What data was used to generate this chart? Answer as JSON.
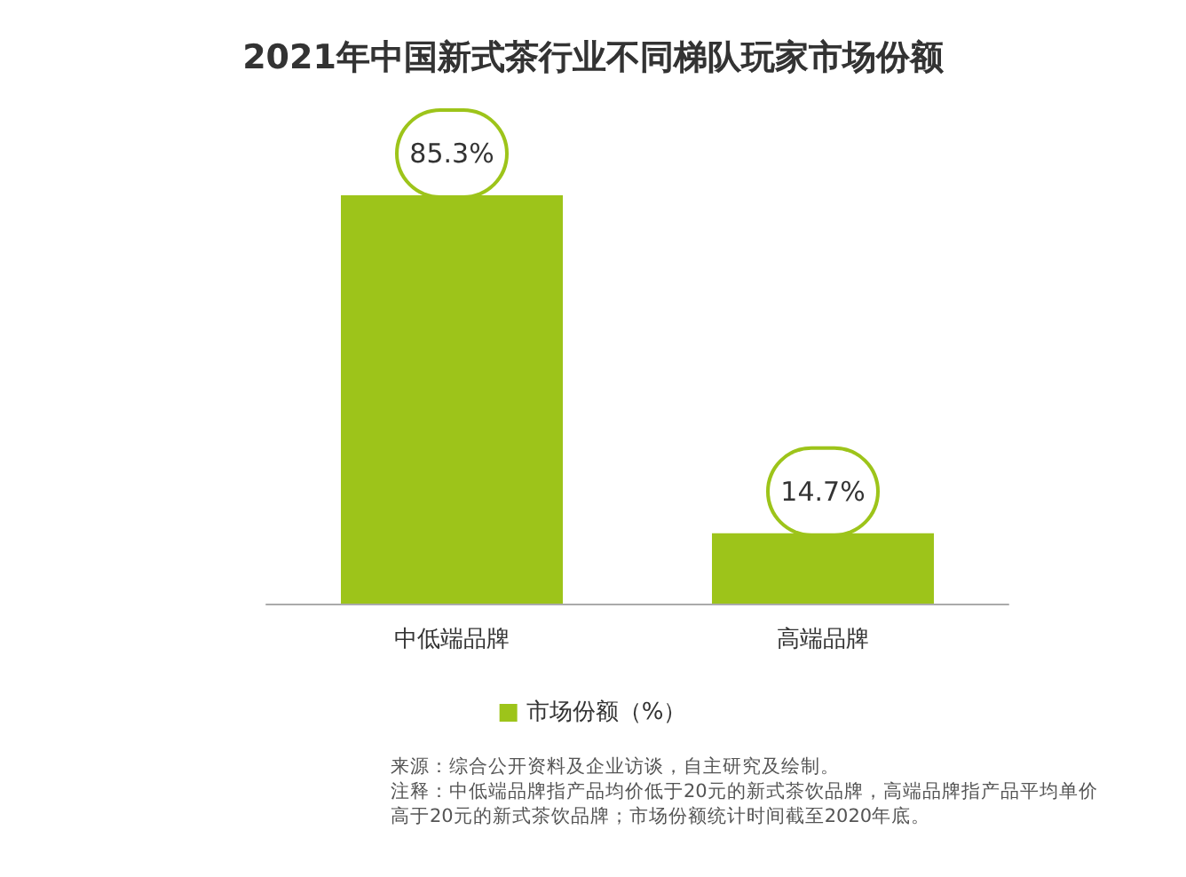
{
  "chart_data": {
    "type": "bar",
    "title": "2021年中国新式茶行业不同梯队玩家市场份额",
    "categories": [
      "中低端品牌",
      "高端品牌"
    ],
    "series": [
      {
        "name": "市场份额（%）",
        "color": "#9dc41a",
        "values": [
          85.3,
          14.7
        ],
        "value_labels": [
          "85.3%",
          "14.7%"
        ]
      }
    ],
    "legend": "bottom",
    "annotations": [
      "来源：综合公开资料及企业访谈，自主研究及绘制。",
      "注释：中低端品牌指产品均价低于20元的新式茶饮品牌，高端品牌指产品平均单价高于20元的新式茶饮品牌；市场份额统计时间截至2020年底。"
    ]
  }
}
